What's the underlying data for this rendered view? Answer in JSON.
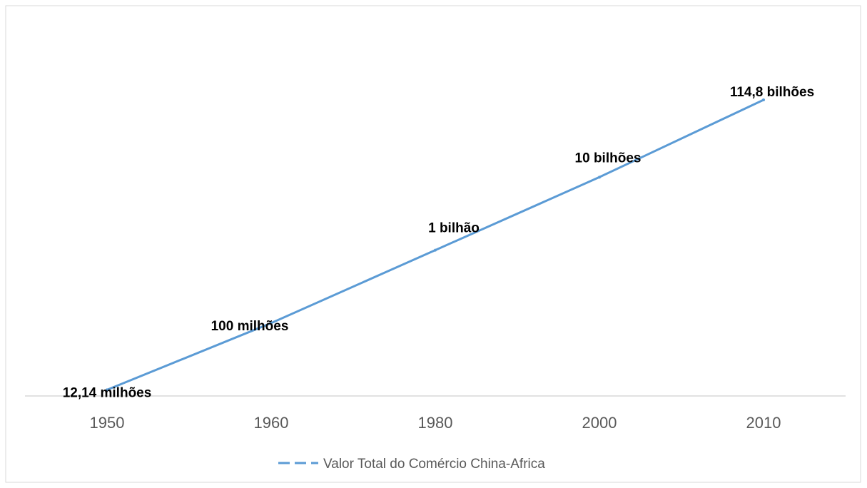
{
  "chart_data": {
    "type": "line",
    "title": "",
    "xlabel": "",
    "ylabel": "",
    "categories": [
      "1950",
      "1960",
      "1980",
      "2000",
      "2010"
    ],
    "series": [
      {
        "name": "Valor Total do Comércio China-Africa",
        "values": [
          12140000,
          100000000,
          1000000000,
          10000000000,
          114800000000
        ],
        "data_labels": [
          "12,14 milhões",
          "100 milhões",
          "1 bilhão",
          "10 bilhões",
          "114,8 bilhões"
        ],
        "color": "#5b9bd5"
      }
    ],
    "y_scale": "log",
    "y_axis_visible": false,
    "grid": false,
    "legend_position": "bottom"
  }
}
